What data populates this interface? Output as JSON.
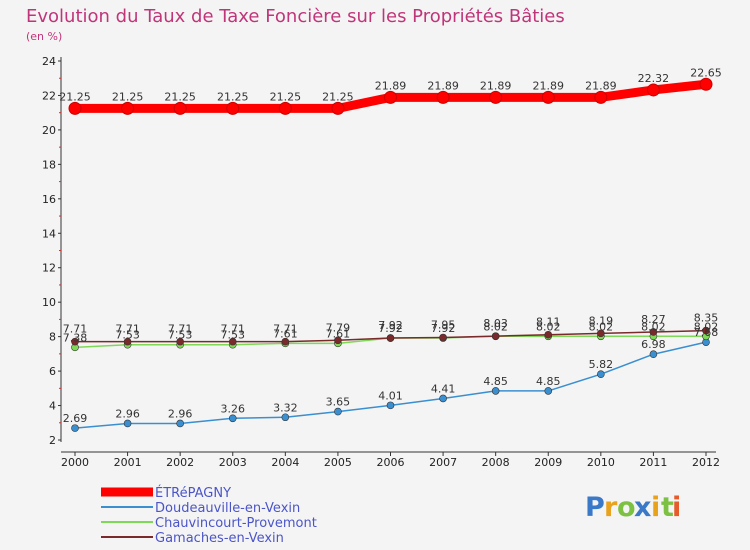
{
  "chart_data": {
    "type": "line",
    "title": "Evolution du Taux de Taxe Foncière sur les Propriétés Bâties",
    "subtitle": "(en %)",
    "x": [
      "2000",
      "2001",
      "2002",
      "2003",
      "2004",
      "2005",
      "2006",
      "2007",
      "2008",
      "2009",
      "2010",
      "2011",
      "2012"
    ],
    "ylim": [
      2,
      24
    ],
    "yticks": [
      2,
      4,
      6,
      8,
      10,
      12,
      14,
      16,
      18,
      20,
      22,
      24
    ],
    "grid": false,
    "legend_position": "bottom-left",
    "series": [
      {
        "name": "ÉTRéPAGNY",
        "color": "#ff0000",
        "values": [
          21.25,
          21.25,
          21.25,
          21.25,
          21.25,
          21.25,
          21.89,
          21.89,
          21.89,
          21.89,
          21.89,
          22.32,
          22.65
        ],
        "labels": [
          "21.25",
          "21.25",
          "21.25",
          "21.25",
          "21.25",
          "21.25",
          "21.89",
          "21.89",
          "21.89",
          "21.89",
          "21.89",
          "22.32",
          "22.65"
        ]
      },
      {
        "name": "Doudeauville-en-Vexin",
        "color": "#3a8fd0",
        "values": [
          2.69,
          2.96,
          2.96,
          3.26,
          3.32,
          3.65,
          4.01,
          4.41,
          4.85,
          4.85,
          5.82,
          6.98,
          7.68
        ],
        "labels": [
          "2.69",
          "2.96",
          "2.96",
          "3.26",
          "3.32",
          "3.65",
          "4.01",
          "4.41",
          "4.85",
          "4.85",
          "5.82",
          "6.98",
          "7.68"
        ]
      },
      {
        "name": "Chauvincourt-Provemont",
        "color": "#7ed957",
        "values": [
          7.38,
          7.53,
          7.53,
          7.53,
          7.61,
          7.61,
          7.92,
          7.92,
          8.02,
          8.02,
          8.02,
          8.02,
          8.02
        ],
        "labels": [
          "7.38",
          "7.53",
          "7.53",
          "7.53",
          "7.61",
          "7.61",
          "7.92",
          "7.92",
          "8.02",
          "8.02",
          "8.02",
          "8.02",
          "8.02"
        ]
      },
      {
        "name": "Gamaches-en-Vexin",
        "color": "#7a2a2a",
        "values": [
          7.71,
          7.71,
          7.71,
          7.71,
          7.71,
          7.79,
          7.92,
          7.95,
          8.03,
          8.11,
          8.19,
          8.27,
          8.35
        ],
        "labels": [
          "7.71",
          "7.71",
          "7.71",
          "7.71",
          "7.71",
          "7.79",
          "7.92",
          "7.95",
          "8.03",
          "8.11",
          "8.19",
          "8.27",
          "8.35"
        ]
      }
    ]
  },
  "brand": {
    "letters": [
      "P",
      "r",
      "o",
      "x",
      "i",
      "t",
      "i"
    ],
    "colors": [
      "#3a78c8",
      "#e9a21c",
      "#7cc142",
      "#3a78c8",
      "#e9a21c",
      "#7cc142",
      "#e55b2a"
    ]
  }
}
